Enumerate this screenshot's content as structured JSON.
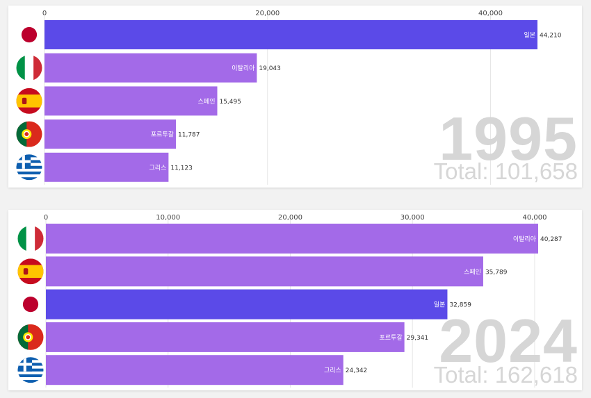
{
  "chart_data": [
    {
      "type": "bar",
      "year": "1995",
      "total_label": "Total: 101,658",
      "xlim": [
        0,
        44210
      ],
      "ticks": [
        0,
        20000,
        40000
      ],
      "tick_labels": [
        "0",
        "20,000",
        "40,000"
      ],
      "bars": [
        {
          "country": "일본",
          "flag": "japan-flag-icon",
          "value": 44210,
          "value_label": "44,210",
          "color": "#5b4ae8"
        },
        {
          "country": "이탈리아",
          "flag": "italy-flag-icon",
          "value": 19043,
          "value_label": "19,043",
          "color": "#a36ae8"
        },
        {
          "country": "스페인",
          "flag": "spain-flag-icon",
          "value": 15495,
          "value_label": "15,495",
          "color": "#a36ae8"
        },
        {
          "country": "포르투갈",
          "flag": "portugal-flag-icon",
          "value": 11787,
          "value_label": "11,787",
          "color": "#a36ae8"
        },
        {
          "country": "그리스",
          "flag": "greece-flag-icon",
          "value": 11123,
          "value_label": "11,123",
          "color": "#a36ae8"
        }
      ]
    },
    {
      "type": "bar",
      "year": "2024",
      "total_label": "Total: 162,618",
      "xlim": [
        0,
        40287
      ],
      "ticks": [
        0,
        10000,
        20000,
        30000,
        40000
      ],
      "tick_labels": [
        "0",
        "10,000",
        "20,000",
        "30,000",
        "40,000"
      ],
      "bars": [
        {
          "country": "이탈리아",
          "flag": "italy-flag-icon",
          "value": 40287,
          "value_label": "40,287",
          "color": "#a36ae8"
        },
        {
          "country": "스페인",
          "flag": "spain-flag-icon",
          "value": 35789,
          "value_label": "35,789",
          "color": "#a36ae8"
        },
        {
          "country": "일본",
          "flag": "japan-flag-icon",
          "value": 32859,
          "value_label": "32,859",
          "color": "#5b4ae8"
        },
        {
          "country": "포르투갈",
          "flag": "portugal-flag-icon",
          "value": 29341,
          "value_label": "29,341",
          "color": "#a36ae8"
        },
        {
          "country": "그리스",
          "flag": "greece-flag-icon",
          "value": 24342,
          "value_label": "24,342",
          "color": "#a36ae8"
        }
      ]
    }
  ]
}
